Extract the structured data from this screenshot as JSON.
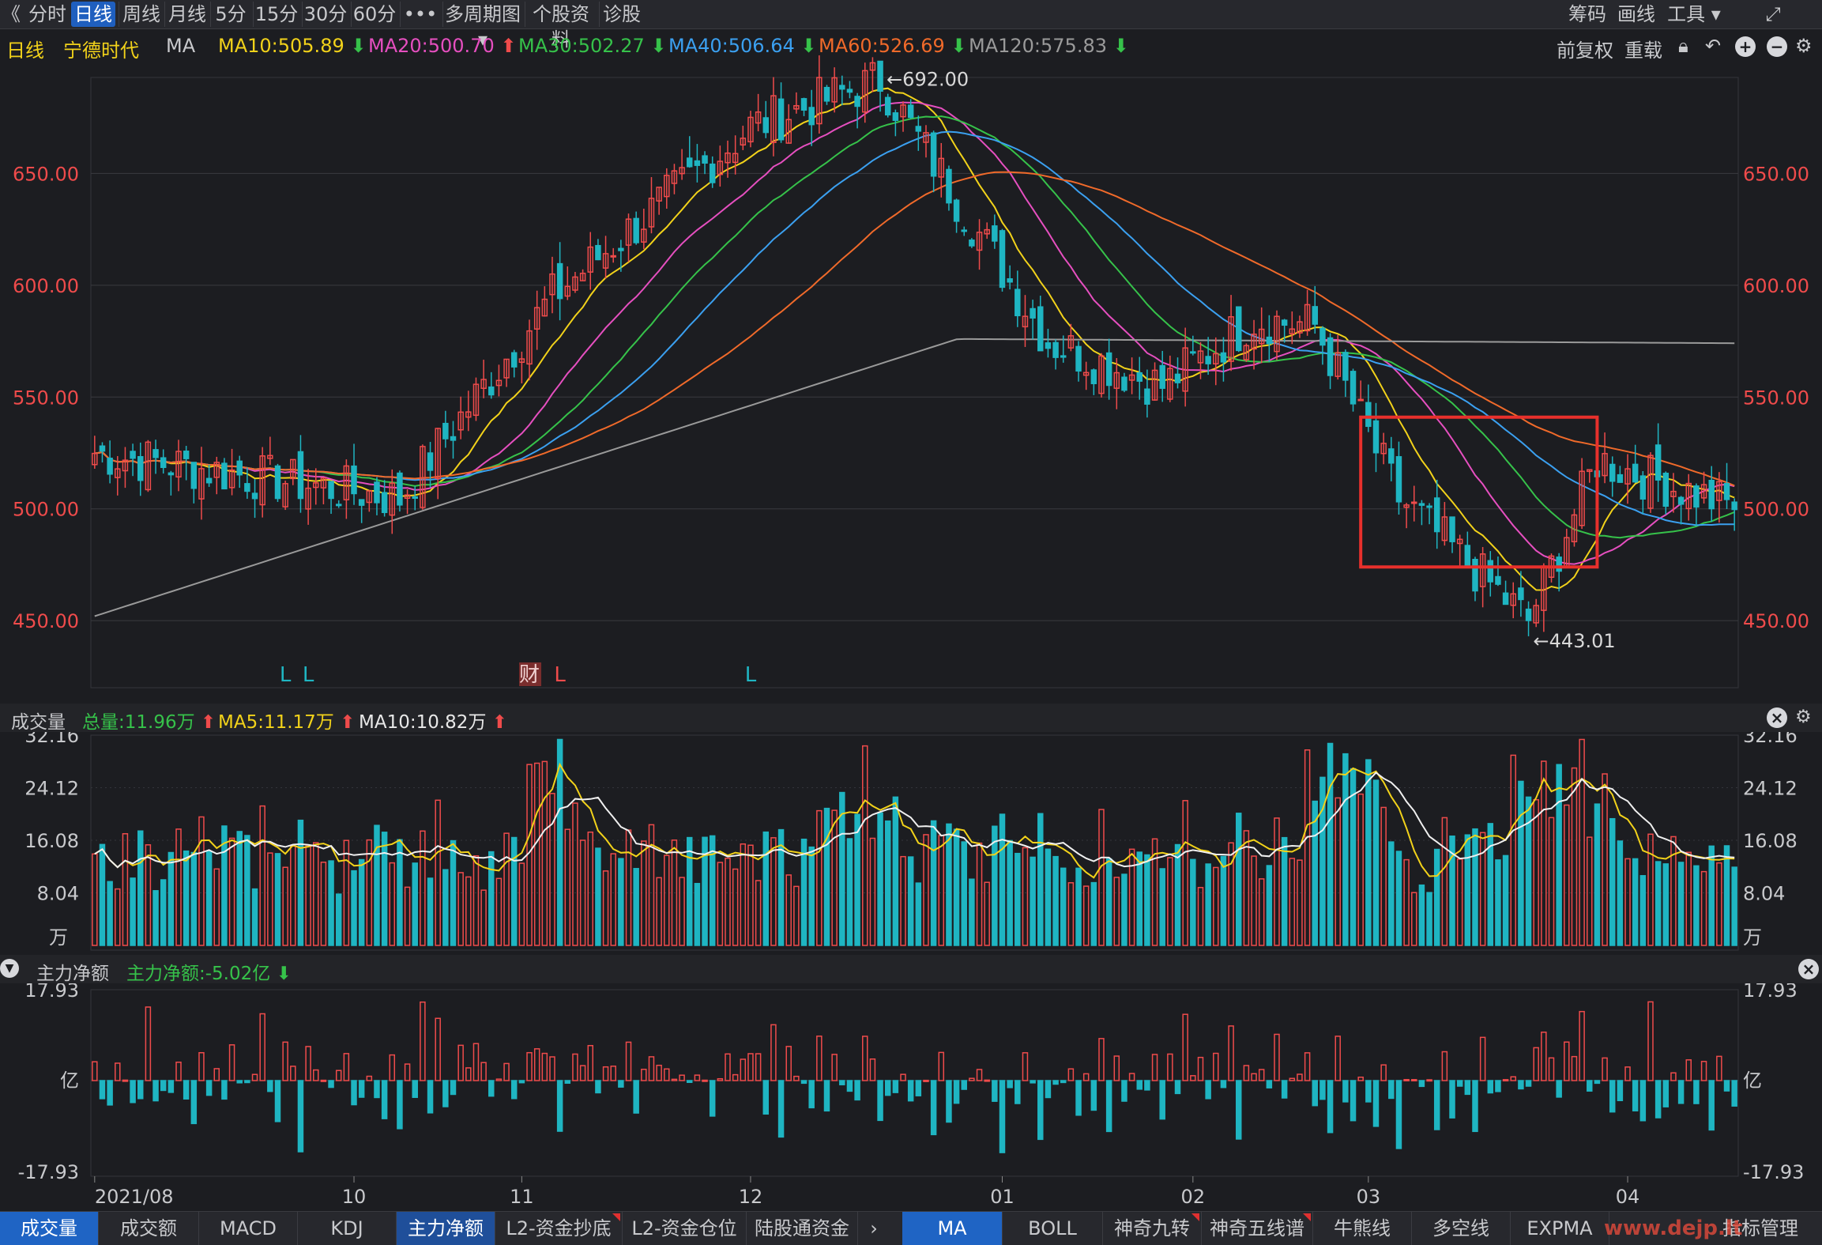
{
  "toolbar": {
    "back": "《",
    "periods": [
      "分时",
      "日线",
      "周线",
      "月线",
      "5分",
      "15分",
      "30分",
      "60分"
    ],
    "more": "•••",
    "multi": "多周期图 ▾",
    "profile": "个股资料",
    "diagnose": "诊股",
    "right": [
      "筹码",
      "画线",
      "工具 ▾"
    ],
    "fullscreen": "⤢"
  },
  "info": {
    "period": "日线",
    "stock": "宁德时代",
    "indicator": "MA",
    "ma10": "MA10:505.89",
    "ma20": "MA20:500.70",
    "ma30": "MA30:502.27",
    "ma40": "MA40:506.64",
    "ma60": "MA60:526.69",
    "ma120": "MA120:575.83",
    "restore": "前复权",
    "reload": "重载",
    "colors": {
      "ma10": "#f2d21a",
      "ma20": "#e64fc0",
      "ma30": "#36c24a",
      "ma40": "#3ba0f0",
      "ma60": "#f06a2a",
      "ma120": "#9a9a9a",
      "up": "#ef4b4b",
      "down": "#1fb5c2"
    }
  },
  "vol_title": {
    "name": "成交量",
    "total": "总量:11.96万",
    "ma5": "MA5:11.17万",
    "ma10": "MA10:10.82万"
  },
  "flow_title": {
    "name": "主力净额",
    "value": "主力净额:-5.02亿"
  },
  "bottom_tabs_left": [
    "成交量",
    "成交额",
    "MACD",
    "KDJ",
    "主力净额",
    "L2-资金抄底",
    "L2-资金仓位",
    "陆股通资金"
  ],
  "bottom_tabs_right": [
    "MA",
    "BOLL",
    "神奇九转",
    "神奇五线谱",
    "牛熊线",
    "多空线",
    "EXPMA",
    "指标管理"
  ],
  "watermark": "www.dejp.lt",
  "chart_data": [
    {
      "type": "candlestick",
      "title": "宁德时代 日线",
      "yticks": [
        "650.00",
        "600.00",
        "550.00",
        "500.00",
        "450.00"
      ],
      "ylim": [
        420,
        700
      ],
      "xticks": [
        "2021/08",
        "10",
        "11",
        "12",
        "01",
        "02",
        "03",
        "04"
      ],
      "annotations": [
        "←692.00",
        "←443.01"
      ],
      "markers": [
        "L",
        "L",
        "财",
        "L",
        "L"
      ],
      "highlight_box": {
        "from_session": 167,
        "to_session": 196,
        "price_low": 474,
        "price_high": 541
      },
      "ohlc_key": [
        {
          "session": 0,
          "price": 525
        },
        {
          "session": 40,
          "price": 505
        },
        {
          "session": 60,
          "price": 595
        },
        {
          "session": 86,
          "price": 671
        },
        {
          "session": 103,
          "price": 692
        },
        {
          "session": 125,
          "price": 575
        },
        {
          "session": 140,
          "price": 555
        },
        {
          "session": 152,
          "price": 585
        },
        {
          "session": 160,
          "price": 582
        },
        {
          "session": 171,
          "price": 505
        },
        {
          "session": 188,
          "price": 450
        },
        {
          "session": 197,
          "price": 522
        },
        {
          "session": 214,
          "price": 502
        }
      ],
      "ma_lines": {
        "MA120": {
          "start": 452,
          "end": 576
        },
        "MA60": {
          "start": 502,
          "end": 527
        },
        "MA10_last": 505.89,
        "MA20_last": 500.7,
        "MA30_last": 502.27,
        "MA40_last": 506.64
      }
    },
    {
      "type": "bar",
      "title": "成交量",
      "unit": "万",
      "yticks": [
        "32.16",
        "24.12",
        "16.08",
        "8.04"
      ],
      "ylim": [
        0,
        32.16
      ],
      "series": [
        {
          "name": "MA5",
          "last": 11.17
        },
        {
          "name": "MA10",
          "last": 10.82
        }
      ],
      "last": 11.96
    },
    {
      "type": "bar",
      "title": "主力净额",
      "unit": "亿",
      "yticks": [
        "17.93",
        "-17.93"
      ],
      "ylim": [
        -17.93,
        17.93
      ],
      "last": -5.02
    }
  ]
}
